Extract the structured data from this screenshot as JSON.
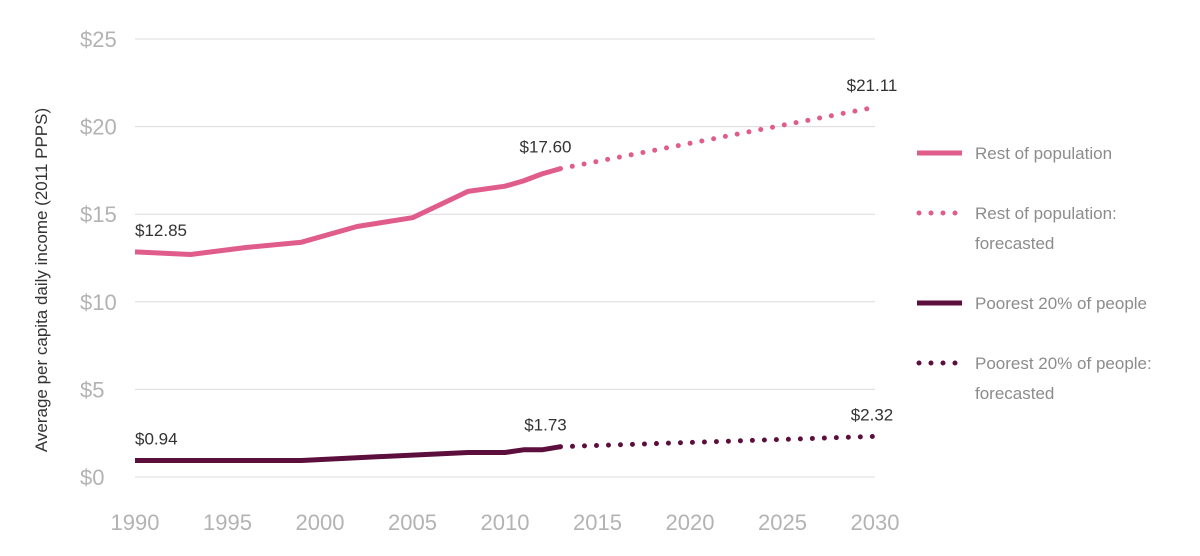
{
  "chart_data": {
    "type": "line",
    "title": "",
    "xlabel": "",
    "ylabel": "Average per capita daily income (2011 PPPS)",
    "xlim": [
      1990,
      2030
    ],
    "ylim": [
      0,
      25
    ],
    "x_ticks": [
      "1990",
      "1995",
      "2000",
      "2005",
      "2010",
      "2015",
      "2020",
      "2025",
      "2030"
    ],
    "y_ticks": [
      "$0",
      "$5",
      "$10",
      "$15",
      "$20",
      "$25"
    ],
    "grid": "horizontal",
    "legend_position": "right",
    "colors": {
      "rest": "#e05c8a",
      "poorest": "#5c0f3d"
    },
    "series": [
      {
        "name": "Rest of population",
        "style": "solid",
        "color": "#e05c8a",
        "x": [
          1990,
          1993,
          1996,
          1999,
          2002,
          2005,
          2008,
          2010,
          2011,
          2012,
          2013
        ],
        "y": [
          12.85,
          12.7,
          13.1,
          13.4,
          14.3,
          14.8,
          16.3,
          16.6,
          16.9,
          17.3,
          17.6
        ]
      },
      {
        "name": "Rest of population: forecasted",
        "style": "dotted",
        "color": "#e05c8a",
        "x": [
          2013,
          2030
        ],
        "y": [
          17.6,
          21.11
        ]
      },
      {
        "name": "Poorest 20% of people",
        "style": "solid",
        "color": "#5c0f3d",
        "x": [
          1990,
          1993,
          1996,
          1999,
          2002,
          2005,
          2008,
          2010,
          2011,
          2012,
          2013
        ],
        "y": [
          0.94,
          0.94,
          0.94,
          0.94,
          1.1,
          1.25,
          1.4,
          1.4,
          1.55,
          1.55,
          1.73
        ]
      },
      {
        "name": "Poorest 20% of people: forecasted",
        "style": "dotted",
        "color": "#5c0f3d",
        "x": [
          2013,
          2030
        ],
        "y": [
          1.73,
          2.32
        ]
      }
    ],
    "annotations": [
      {
        "text": "$12.85",
        "x": 1990,
        "y": 12.85,
        "series": "rest"
      },
      {
        "text": "$17.60",
        "x": 2013,
        "y": 17.6,
        "series": "rest"
      },
      {
        "text": "$21.11",
        "x": 2030,
        "y": 21.11,
        "series": "rest"
      },
      {
        "text": "$0.94",
        "x": 1990,
        "y": 0.94,
        "series": "poorest"
      },
      {
        "text": "$1.73",
        "x": 2013,
        "y": 1.73,
        "series": "poorest"
      },
      {
        "text": "$2.32",
        "x": 2030,
        "y": 2.32,
        "series": "poorest"
      }
    ],
    "legend": [
      {
        "lines": [
          "Rest of population"
        ],
        "style": "solid",
        "color": "#e05c8a"
      },
      {
        "lines": [
          "Rest of population:",
          "forecasted"
        ],
        "style": "dotted",
        "color": "#e05c8a"
      },
      {
        "lines": [
          "Poorest 20% of people"
        ],
        "style": "solid",
        "color": "#5c0f3d"
      },
      {
        "lines": [
          "Poorest 20% of people:",
          "forecasted"
        ],
        "style": "dotted",
        "color": "#5c0f3d"
      }
    ]
  }
}
